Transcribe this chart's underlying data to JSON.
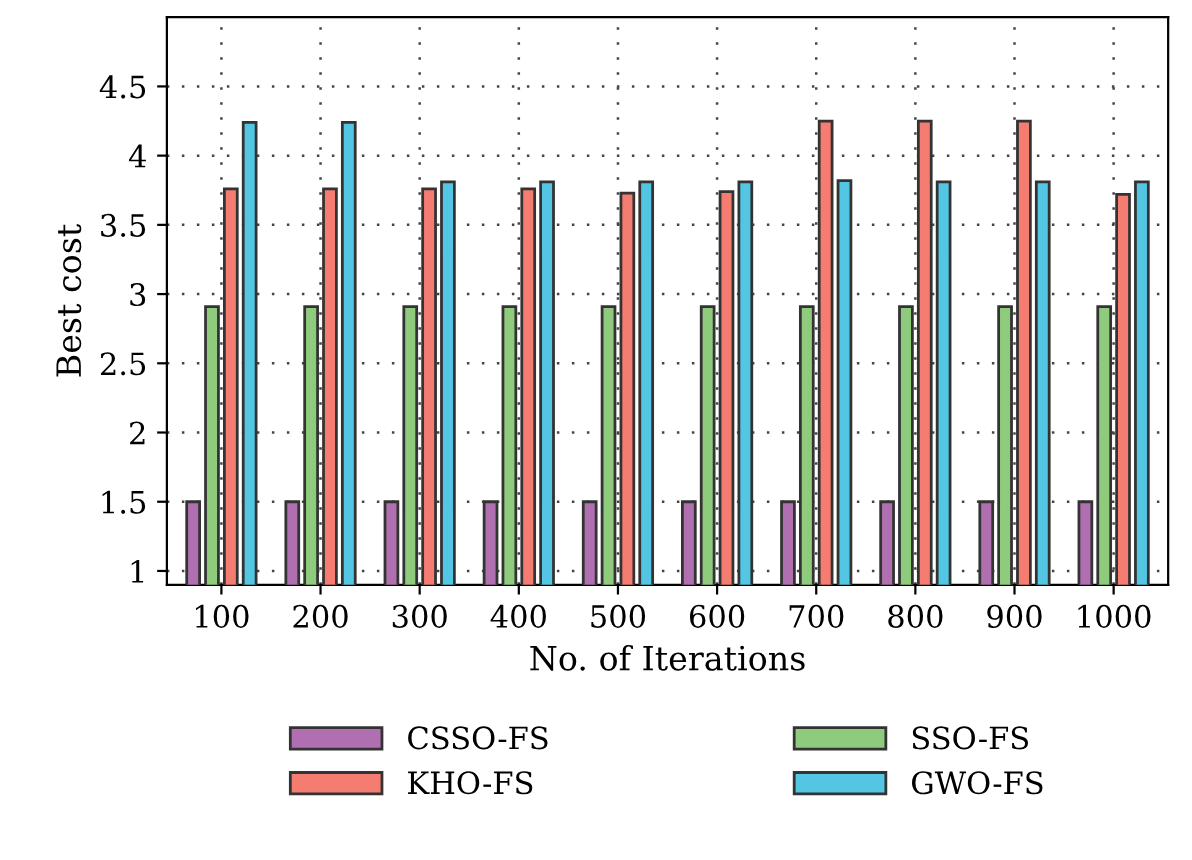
{
  "chart_data": {
    "type": "bar",
    "xlabel": "No. of Iterations",
    "ylabel": "Best cost",
    "categories": [
      "100",
      "200",
      "300",
      "400",
      "500",
      "600",
      "700",
      "800",
      "900",
      "1000"
    ],
    "series": [
      {
        "name": "CSSO-FS",
        "color": "#b06fb0",
        "values": [
          1.5,
          1.5,
          1.5,
          1.5,
          1.5,
          1.5,
          1.5,
          1.5,
          1.5,
          1.5
        ]
      },
      {
        "name": "SSO-FS",
        "color": "#8fcb7c",
        "values": [
          2.91,
          2.91,
          2.91,
          2.91,
          2.91,
          2.91,
          2.91,
          2.91,
          2.91,
          2.91
        ]
      },
      {
        "name": "KHO-FS",
        "color": "#f47c70",
        "values": [
          3.76,
          3.76,
          3.76,
          3.76,
          3.73,
          3.74,
          4.25,
          4.25,
          4.25,
          3.72
        ]
      },
      {
        "name": "GWO-FS",
        "color": "#52c6e2",
        "values": [
          4.24,
          4.24,
          3.81,
          3.81,
          3.81,
          3.81,
          3.82,
          3.81,
          3.81,
          3.81
        ]
      }
    ],
    "ylim": [
      0.9,
      5
    ],
    "yticks": [
      1,
      1.5,
      2,
      2.5,
      3,
      3.5,
      4,
      4.5
    ],
    "grid": true,
    "legend": "bottom"
  }
}
